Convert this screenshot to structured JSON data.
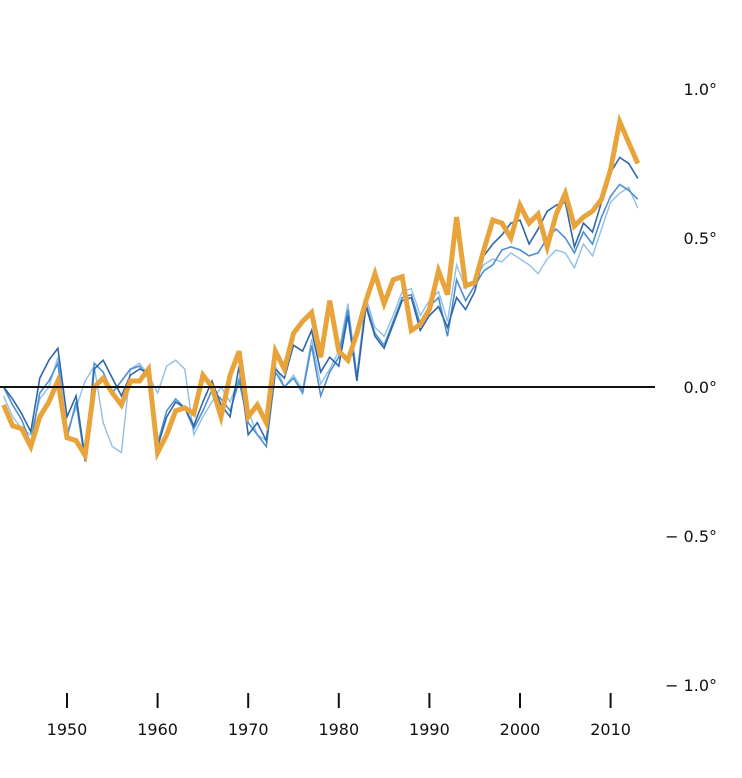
{
  "chart_data": {
    "type": "line",
    "title": "",
    "xlabel": "",
    "ylabel": "",
    "xlim": [
      1943,
      2014
    ],
    "ylim": [
      -1.05,
      1.12
    ],
    "x_ticks": [
      1950,
      1960,
      1970,
      1980,
      1990,
      2000,
      2010
    ],
    "x_tick_labels": [
      "1950",
      "1960",
      "1970",
      "1980",
      "1990",
      "2000",
      "2010"
    ],
    "y_ticks": [
      1.0,
      0.5,
      0.0,
      -0.5,
      -1.0
    ],
    "y_tick_labels": [
      "1.0°",
      "0.5°",
      "0.0°",
      "− 0.5°",
      "− 1.0°"
    ],
    "baseline": 0.0,
    "colors": {
      "main": "#E8A33B",
      "dark_blue": "#2F67A8",
      "mid_blue": "#4D8FD1",
      "light_blue": "#8FBFE8",
      "baseline": "#111111"
    },
    "series": [
      {
        "name": "Light blue series",
        "color_key": "light_blue",
        "x": [
          1943,
          1944,
          1945,
          1946,
          1947,
          1948,
          1949,
          1950,
          1951,
          1952,
          1953,
          1954,
          1955,
          1956,
          1957,
          1958,
          1959,
          1960,
          1961,
          1962,
          1963,
          1964,
          1965,
          1966,
          1967,
          1968,
          1969,
          1970,
          1971,
          1972,
          1973,
          1974,
          1975,
          1976,
          1977,
          1978,
          1979,
          1980,
          1981,
          1982,
          1983,
          1984,
          1985,
          1986,
          1987,
          1988,
          1989,
          1990,
          1991,
          1992,
          1993,
          1994,
          1995,
          1996,
          1997,
          1998,
          1999,
          2000,
          2001,
          2002,
          2003,
          2004,
          2005,
          2006,
          2007,
          2008,
          2009,
          2010,
          2011,
          2012,
          2013
        ],
        "values": [
          -0.03,
          -0.1,
          -0.14,
          -0.16,
          -0.04,
          0.0,
          0.1,
          -0.15,
          -0.07,
          0.02,
          0.07,
          -0.12,
          -0.2,
          -0.22,
          0.06,
          0.08,
          0.04,
          -0.02,
          0.07,
          0.09,
          0.06,
          -0.16,
          -0.1,
          -0.05,
          0.0,
          -0.05,
          0.03,
          -0.08,
          -0.16,
          -0.18,
          0.07,
          0.0,
          0.04,
          -0.01,
          0.16,
          0.01,
          0.06,
          0.12,
          0.28,
          0.04,
          0.3,
          0.2,
          0.17,
          0.24,
          0.32,
          0.33,
          0.24,
          0.29,
          0.32,
          0.22,
          0.41,
          0.33,
          0.36,
          0.41,
          0.43,
          0.42,
          0.45,
          0.43,
          0.41,
          0.38,
          0.43,
          0.46,
          0.45,
          0.4,
          0.48,
          0.44,
          0.53,
          0.62,
          0.65,
          0.67,
          0.6
        ]
      },
      {
        "name": "Mid blue series",
        "color_key": "mid_blue",
        "x": [
          1943,
          1944,
          1945,
          1946,
          1947,
          1948,
          1949,
          1950,
          1951,
          1952,
          1953,
          1954,
          1955,
          1956,
          1957,
          1958,
          1959,
          1960,
          1961,
          1962,
          1963,
          1964,
          1965,
          1966,
          1967,
          1968,
          1969,
          1970,
          1971,
          1972,
          1973,
          1974,
          1975,
          1976,
          1977,
          1978,
          1979,
          1980,
          1981,
          1982,
          1983,
          1984,
          1985,
          1986,
          1987,
          1988,
          1989,
          1990,
          1991,
          1992,
          1993,
          1994,
          1995,
          1996,
          1997,
          1998,
          1999,
          2000,
          2001,
          2002,
          2003,
          2004,
          2005,
          2006,
          2007,
          2008,
          2009,
          2010,
          2011,
          2012,
          2013
        ],
        "values": [
          0.0,
          -0.06,
          -0.11,
          -0.19,
          -0.02,
          0.02,
          0.08,
          -0.17,
          -0.05,
          -0.25,
          0.08,
          0.05,
          -0.02,
          0.02,
          0.06,
          0.07,
          0.03,
          -0.19,
          -0.08,
          -0.04,
          -0.07,
          -0.14,
          -0.08,
          -0.01,
          -0.04,
          -0.08,
          0.02,
          -0.12,
          -0.16,
          -0.2,
          0.05,
          0.0,
          0.03,
          -0.02,
          0.14,
          -0.03,
          0.05,
          0.1,
          0.26,
          0.03,
          0.28,
          0.18,
          0.14,
          0.22,
          0.3,
          0.31,
          0.21,
          0.27,
          0.3,
          0.17,
          0.36,
          0.29,
          0.34,
          0.39,
          0.41,
          0.46,
          0.47,
          0.46,
          0.44,
          0.45,
          0.5,
          0.53,
          0.5,
          0.45,
          0.52,
          0.48,
          0.57,
          0.64,
          0.68,
          0.66,
          0.63
        ]
      },
      {
        "name": "Dark blue series",
        "color_key": "dark_blue",
        "x": [
          1943,
          1944,
          1945,
          1946,
          1947,
          1948,
          1949,
          1950,
          1951,
          1952,
          1953,
          1954,
          1955,
          1956,
          1957,
          1958,
          1959,
          1960,
          1961,
          1962,
          1963,
          1964,
          1965,
          1966,
          1967,
          1968,
          1969,
          1970,
          1971,
          1972,
          1973,
          1974,
          1975,
          1976,
          1977,
          1978,
          1979,
          1980,
          1981,
          1982,
          1983,
          1984,
          1985,
          1986,
          1987,
          1988,
          1989,
          1990,
          1991,
          1992,
          1993,
          1994,
          1995,
          1996,
          1997,
          1998,
          1999,
          2000,
          2001,
          2002,
          2003,
          2004,
          2005,
          2006,
          2007,
          2008,
          2009,
          2010,
          2011,
          2012,
          2013
        ],
        "values": [
          0.0,
          -0.04,
          -0.09,
          -0.15,
          0.03,
          0.09,
          0.13,
          -0.1,
          -0.03,
          -0.24,
          0.06,
          0.09,
          0.03,
          -0.03,
          0.04,
          0.06,
          0.05,
          -0.2,
          -0.1,
          -0.05,
          -0.07,
          -0.13,
          -0.05,
          0.02,
          -0.06,
          -0.1,
          0.07,
          -0.16,
          -0.12,
          -0.18,
          0.06,
          0.03,
          0.14,
          0.12,
          0.19,
          0.05,
          0.1,
          0.07,
          0.24,
          0.02,
          0.27,
          0.17,
          0.13,
          0.21,
          0.29,
          0.3,
          0.19,
          0.24,
          0.27,
          0.2,
          0.3,
          0.26,
          0.32,
          0.44,
          0.48,
          0.51,
          0.55,
          0.56,
          0.48,
          0.53,
          0.59,
          0.61,
          0.62,
          0.47,
          0.55,
          0.52,
          0.62,
          0.72,
          0.77,
          0.75,
          0.7
        ]
      },
      {
        "name": "Orange series",
        "color_key": "main",
        "x": [
          1943,
          1944,
          1945,
          1946,
          1947,
          1948,
          1949,
          1950,
          1951,
          1952,
          1953,
          1954,
          1955,
          1956,
          1957,
          1958,
          1959,
          1960,
          1961,
          1962,
          1963,
          1964,
          1965,
          1966,
          1967,
          1968,
          1969,
          1970,
          1971,
          1972,
          1973,
          1974,
          1975,
          1976,
          1977,
          1978,
          1979,
          1980,
          1981,
          1982,
          1983,
          1984,
          1985,
          1986,
          1987,
          1988,
          1989,
          1990,
          1991,
          1992,
          1993,
          1994,
          1995,
          1996,
          1997,
          1998,
          1999,
          2000,
          2001,
          2002,
          2003,
          2004,
          2005,
          2006,
          2007,
          2008,
          2009,
          2010,
          2011,
          2012,
          2013
        ],
        "values": [
          -0.06,
          -0.13,
          -0.14,
          -0.2,
          -0.1,
          -0.05,
          0.02,
          -0.17,
          -0.18,
          -0.23,
          0.0,
          0.03,
          -0.02,
          -0.06,
          0.02,
          0.02,
          0.06,
          -0.22,
          -0.16,
          -0.08,
          -0.07,
          -0.09,
          0.04,
          0.0,
          -0.1,
          0.04,
          0.12,
          -0.1,
          -0.06,
          -0.12,
          0.12,
          0.06,
          0.18,
          0.22,
          0.25,
          0.1,
          0.29,
          0.12,
          0.09,
          0.18,
          0.29,
          0.38,
          0.28,
          0.36,
          0.37,
          0.19,
          0.21,
          0.26,
          0.39,
          0.31,
          0.57,
          0.34,
          0.35,
          0.46,
          0.56,
          0.55,
          0.5,
          0.61,
          0.55,
          0.58,
          0.47,
          0.58,
          0.65,
          0.54,
          0.57,
          0.59,
          0.63,
          0.73,
          0.89,
          0.82,
          0.75
        ]
      }
    ]
  }
}
